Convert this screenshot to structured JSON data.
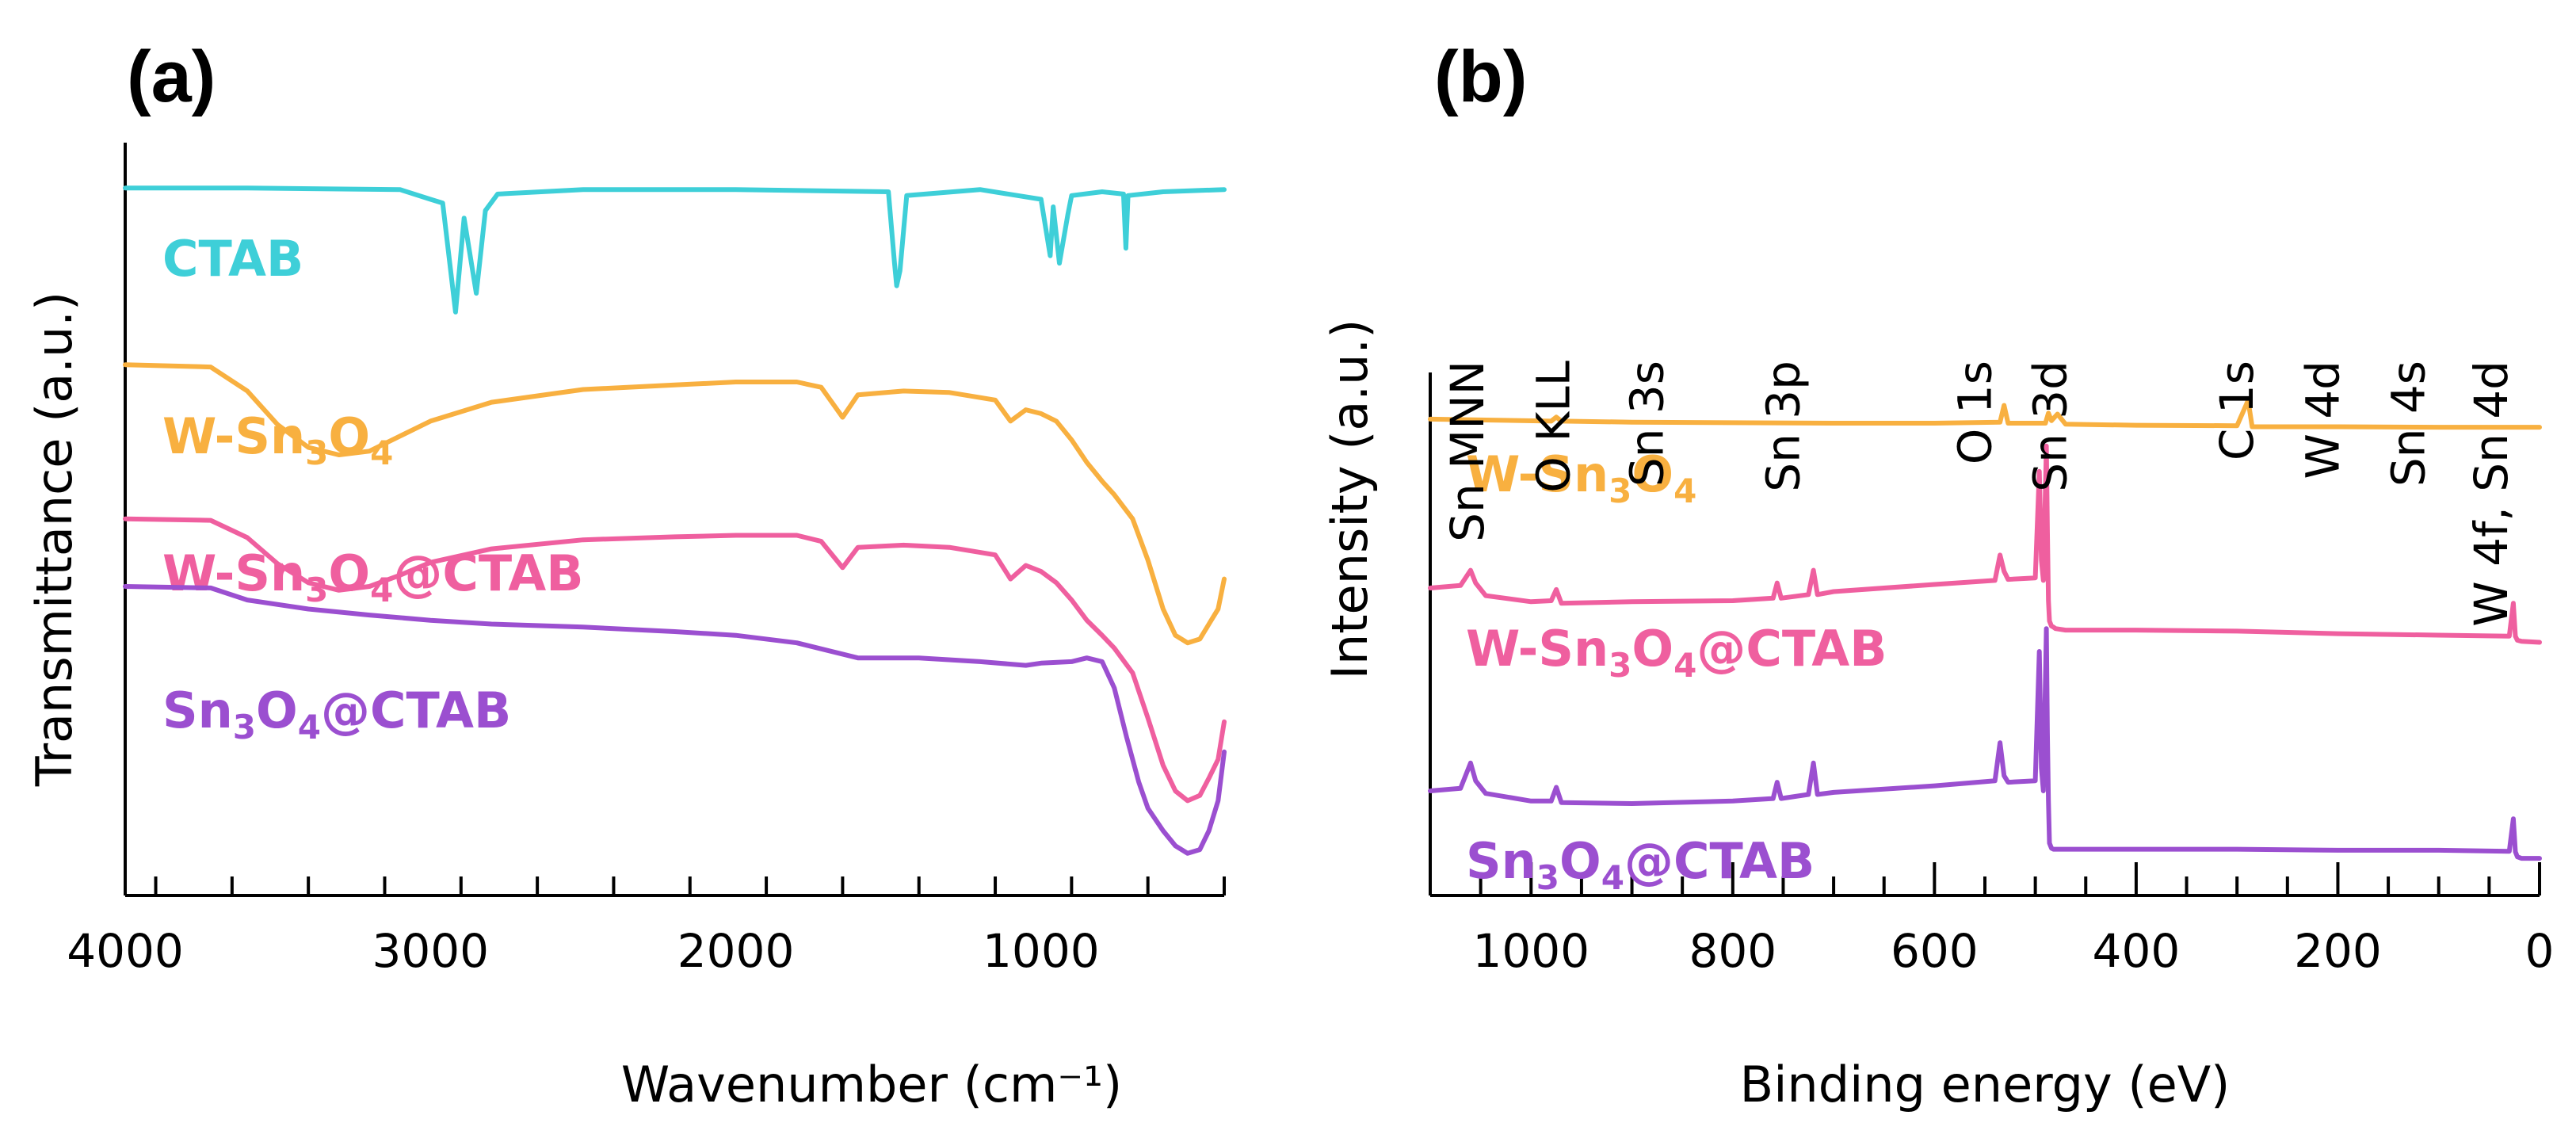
{
  "chart_data": [
    {
      "type": "line",
      "panel_label": "(a)",
      "xlabel": "Wavenumber (cm⁻¹)",
      "ylabel": "Transmittance (a.u.)",
      "xlim": [
        4000,
        400
      ],
      "x_reversed": true,
      "x_ticks": [
        4000,
        3000,
        2000,
        1000
      ],
      "x_tick_labels": [
        "4000",
        "3000",
        "2000",
        "1000"
      ],
      "ylim": [
        0,
        10
      ],
      "grid": false,
      "series": [
        {
          "name": "CTAB",
          "label": "CTAB",
          "label_parts": [
            {
              "t": "CTAB",
              "s": false
            }
          ],
          "color": "#3ecfd8",
          "x": [
            4000,
            3600,
            3100,
            3000,
            2960,
            2918,
            2890,
            2850,
            2820,
            2780,
            2500,
            2000,
            1500,
            1480,
            1473,
            1462,
            1440,
            1200,
            1000,
            970,
            960,
            940,
            912,
            900,
            800,
            730,
            722,
            715,
            600,
            400
          ],
          "y": [
            9.2,
            9.2,
            9.18,
            9.05,
            9.0,
            7.55,
            8.8,
            7.8,
            8.9,
            9.12,
            9.18,
            9.18,
            9.15,
            8.2,
            7.9,
            8.1,
            9.1,
            9.18,
            9.05,
            8.3,
            8.95,
            8.2,
            8.85,
            9.1,
            9.15,
            9.12,
            8.4,
            9.1,
            9.15,
            9.18
          ]
        },
        {
          "name": "W-Sn3O4",
          "label": "W-Sn3O4",
          "label_parts": [
            {
              "t": "W-Sn",
              "s": false
            },
            {
              "t": "3",
              "s": true
            },
            {
              "t": "O",
              "s": false
            },
            {
              "t": "4",
              "s": true
            }
          ],
          "color": "#f8b040",
          "x": [
            4000,
            3720,
            3600,
            3500,
            3400,
            3300,
            3200,
            3100,
            3000,
            2800,
            2500,
            2200,
            2000,
            1800,
            1720,
            1650,
            1600,
            1450,
            1300,
            1150,
            1100,
            1050,
            1000,
            950,
            900,
            850,
            800,
            760,
            700,
            650,
            600,
            560,
            520,
            480,
            450,
            420,
            400
          ],
          "y": [
            6.85,
            6.82,
            6.5,
            6.05,
            5.75,
            5.65,
            5.7,
            5.9,
            6.1,
            6.35,
            6.52,
            6.58,
            6.62,
            6.62,
            6.55,
            6.15,
            6.45,
            6.5,
            6.48,
            6.38,
            6.1,
            6.25,
            6.2,
            6.1,
            5.85,
            5.55,
            5.3,
            5.12,
            4.8,
            4.25,
            3.6,
            3.25,
            3.15,
            3.2,
            3.4,
            3.6,
            4.0
          ]
        },
        {
          "name": "W-Sn3O4@CTAB",
          "label": "W-Sn3O4@CTAB",
          "label_parts": [
            {
              "t": "W-Sn",
              "s": false
            },
            {
              "t": "3",
              "s": true
            },
            {
              "t": "O",
              "s": false
            },
            {
              "t": "4",
              "s": true
            },
            {
              "t": "@CTAB",
              "s": false
            }
          ],
          "color": "#ef5f9f",
          "x": [
            4000,
            3720,
            3600,
            3500,
            3400,
            3300,
            3200,
            3100,
            3000,
            2800,
            2500,
            2200,
            2000,
            1800,
            1720,
            1650,
            1600,
            1450,
            1300,
            1150,
            1100,
            1050,
            1000,
            950,
            900,
            850,
            800,
            760,
            700,
            650,
            600,
            560,
            520,
            480,
            450,
            420,
            400
          ],
          "y": [
            4.8,
            4.78,
            4.55,
            4.2,
            3.95,
            3.85,
            3.9,
            4.05,
            4.22,
            4.4,
            4.52,
            4.56,
            4.58,
            4.58,
            4.5,
            4.15,
            4.42,
            4.45,
            4.42,
            4.32,
            4.0,
            4.18,
            4.1,
            3.95,
            3.72,
            3.45,
            3.25,
            3.08,
            2.75,
            2.15,
            1.52,
            1.18,
            1.05,
            1.12,
            1.35,
            1.6,
            2.1
          ]
        },
        {
          "name": "Sn3O4@CTAB",
          "label": "Sn3O4@CTAB",
          "label_parts": [
            {
              "t": "Sn",
              "s": false
            },
            {
              "t": "3",
              "s": true
            },
            {
              "t": "O",
              "s": false
            },
            {
              "t": "4",
              "s": true
            },
            {
              "t": "@CTAB",
              "s": false
            }
          ],
          "color": "#9b4fd0",
          "x": [
            4000,
            3720,
            3600,
            3400,
            3200,
            3000,
            2800,
            2500,
            2200,
            2000,
            1800,
            1700,
            1600,
            1400,
            1200,
            1050,
            1000,
            900,
            850,
            800,
            760,
            720,
            680,
            650,
            600,
            560,
            520,
            480,
            450,
            420,
            400
          ],
          "y": [
            3.9,
            3.88,
            3.72,
            3.6,
            3.52,
            3.45,
            3.4,
            3.36,
            3.3,
            3.25,
            3.15,
            3.05,
            2.95,
            2.95,
            2.9,
            2.85,
            2.88,
            2.9,
            2.95,
            2.9,
            2.55,
            1.9,
            1.3,
            0.95,
            0.65,
            0.45,
            0.35,
            0.4,
            0.65,
            1.05,
            1.7
          ]
        }
      ]
    },
    {
      "type": "line",
      "panel_label": "(b)",
      "xlabel": "Binding energy (eV)",
      "ylabel": "Intensity (a.u.)",
      "xlim": [
        1100,
        0
      ],
      "x_reversed": true,
      "x_ticks": [
        1000,
        800,
        600,
        400,
        200,
        0
      ],
      "x_tick_labels": [
        "1000",
        "800",
        "600",
        "400",
        "200",
        "0"
      ],
      "ylim": [
        0,
        10
      ],
      "grid": false,
      "peak_annotations": [
        {
          "label": "Sn MNN",
          "x": 1063
        },
        {
          "label": "O KLL",
          "x": 978
        },
        {
          "label": "Sn 3s",
          "x": 885
        },
        {
          "label": "Sn 3p",
          "x": 750
        },
        {
          "label": "O 1s",
          "x": 560
        },
        {
          "label": "Sn 3d",
          "x": 485
        },
        {
          "label": "C 1s",
          "x": 300
        },
        {
          "label": "W 4d",
          "x": 215
        },
        {
          "label": "Sn 4s",
          "x": 130
        },
        {
          "label": "W 4f, Sn 4d",
          "x": 48
        }
      ],
      "series": [
        {
          "name": "W-Sn3O4",
          "label": "W-Sn3O4",
          "label_parts": [
            {
              "t": "W-Sn",
              "s": false
            },
            {
              "t": "3",
              "s": true
            },
            {
              "t": "O",
              "s": false
            },
            {
              "t": "4",
              "s": true
            }
          ],
          "color": "#f8b040",
          "x": [
            1100,
            980,
            975,
            970,
            900,
            700,
            600,
            535,
            531,
            527,
            500,
            490,
            487,
            484,
            478,
            470,
            400,
            300,
            289,
            285,
            281,
            270,
            200,
            100,
            0
          ],
          "y": [
            9.08,
            9.04,
            9.12,
            9.04,
            9.02,
            9.0,
            9.0,
            9.02,
            9.35,
            9.0,
            9.0,
            9.0,
            9.2,
            9.05,
            9.18,
            8.98,
            8.96,
            8.95,
            9.45,
            8.93,
            8.93,
            8.93,
            8.93,
            8.92,
            8.92
          ]
        },
        {
          "name": "W-Sn3O4@CTAB",
          "label": "W-Sn3O4@CTAB",
          "label_parts": [
            {
              "t": "W-Sn",
              "s": false
            },
            {
              "t": "3",
              "s": true
            },
            {
              "t": "O",
              "s": false
            },
            {
              "t": "4",
              "s": true
            },
            {
              "t": "@CTAB",
              "s": false
            }
          ],
          "color": "#ef5f9f",
          "x": [
            1100,
            1070,
            1060,
            1055,
            1045,
            1000,
            980,
            975,
            970,
            900,
            800,
            760,
            756,
            752,
            725,
            720,
            716,
            700,
            600,
            540,
            535,
            531,
            527,
            500,
            496,
            494,
            492,
            489,
            488,
            487,
            486,
            484,
            482,
            480,
            470,
            400,
            300,
            200,
            100,
            30,
            26,
            24,
            22,
            18,
            0
          ],
          "y": [
            5.75,
            5.8,
            6.1,
            5.85,
            5.6,
            5.48,
            5.5,
            5.72,
            5.45,
            5.48,
            5.5,
            5.55,
            5.85,
            5.55,
            5.62,
            6.1,
            5.62,
            5.68,
            5.82,
            5.9,
            6.4,
            6.08,
            5.92,
            5.95,
            8.05,
            6.3,
            5.9,
            8.55,
            6.9,
            5.5,
            5.1,
            5.0,
            4.98,
            4.95,
            4.92,
            4.92,
            4.9,
            4.85,
            4.82,
            4.8,
            5.45,
            4.8,
            4.72,
            4.7,
            4.68
          ]
        },
        {
          "name": "Sn3O4@CTAB",
          "label": "Sn3O4@CTAB",
          "label_parts": [
            {
              "t": "Sn",
              "s": false
            },
            {
              "t": "3",
              "s": true
            },
            {
              "t": "O",
              "s": false
            },
            {
              "t": "4",
              "s": true
            },
            {
              "t": "@CTAB",
              "s": false
            }
          ],
          "color": "#9b4fd0",
          "x": [
            1100,
            1070,
            1060,
            1055,
            1045,
            1000,
            980,
            975,
            970,
            900,
            800,
            760,
            756,
            752,
            725,
            720,
            716,
            700,
            600,
            540,
            535,
            531,
            527,
            500,
            496,
            494,
            492,
            489,
            488,
            487,
            486,
            484,
            482,
            480,
            470,
            400,
            300,
            200,
            100,
            30,
            26,
            24,
            22,
            18,
            0
          ],
          "y": [
            1.75,
            1.8,
            2.3,
            1.95,
            1.7,
            1.55,
            1.55,
            1.82,
            1.52,
            1.5,
            1.55,
            1.6,
            1.92,
            1.6,
            1.68,
            2.3,
            1.68,
            1.72,
            1.85,
            1.95,
            2.7,
            2.05,
            1.92,
            1.95,
            4.5,
            2.2,
            1.75,
            4.95,
            2.9,
            1.55,
            0.72,
            0.62,
            0.6,
            0.6,
            0.6,
            0.6,
            0.6,
            0.58,
            0.58,
            0.56,
            1.2,
            0.55,
            0.45,
            0.42,
            0.42
          ]
        }
      ]
    }
  ]
}
